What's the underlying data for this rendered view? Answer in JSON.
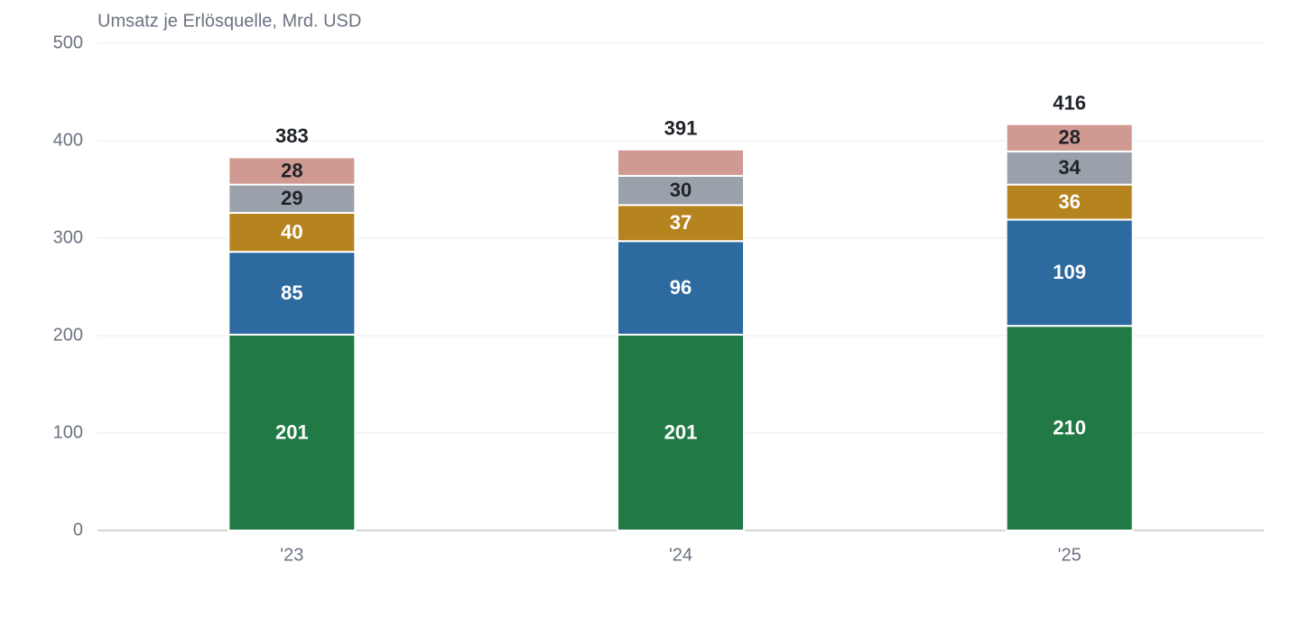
{
  "chart_data": {
    "type": "stacked_bar",
    "title": "Umsatz je Erlösquelle, Mrd. USD",
    "categories": [
      "'23",
      "'24",
      "'25"
    ],
    "series": [
      {
        "color": "#217a46",
        "label_color": "#ffffff",
        "values": [
          201,
          201,
          210
        ]
      },
      {
        "color": "#2d6a9f",
        "label_color": "#ffffff",
        "values": [
          85,
          96,
          109
        ]
      },
      {
        "color": "#b5841f",
        "label_color": "#ffffff",
        "values": [
          40,
          37,
          36
        ]
      },
      {
        "color": "#9aa1ab",
        "label_color": "#1f2328",
        "values": [
          29,
          30,
          34
        ]
      },
      {
        "color": "#d09a92",
        "label_color": "#1f2328",
        "values": [
          28,
          27,
          28
        ],
        "value_labels": [
          "28",
          null,
          "28"
        ]
      }
    ],
    "totals": [
      383,
      391,
      416
    ],
    "ylim": [
      0,
      500
    ],
    "yticks": [
      0,
      100,
      200,
      300,
      400,
      500
    ],
    "grid": true
  }
}
